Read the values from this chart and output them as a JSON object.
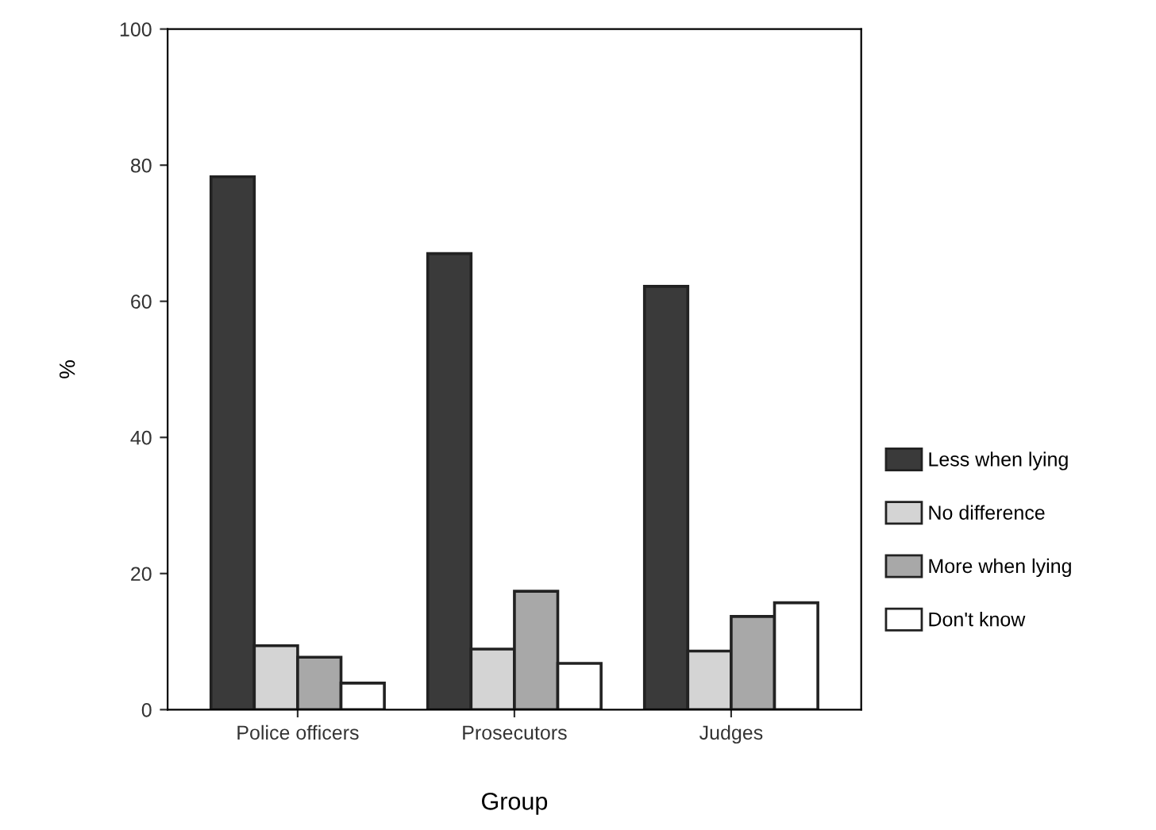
{
  "chart_data": {
    "type": "bar",
    "xlabel": "Group",
    "ylabel": "%",
    "categories": [
      "Police officers",
      "Prosecutors",
      "Judges"
    ],
    "series": [
      {
        "name": "Less when lying",
        "color": "#3a3a3a",
        "values": [
          78.3,
          67.0,
          62.2
        ]
      },
      {
        "name": "No difference",
        "color": "#d4d4d4",
        "values": [
          9.4,
          8.9,
          8.6
        ]
      },
      {
        "name": "More when lying",
        "color": "#a8a8a8",
        "values": [
          7.7,
          17.4,
          13.7
        ]
      },
      {
        "name": "Don't know",
        "color": "#ffffff",
        "values": [
          3.9,
          6.8,
          15.7
        ]
      }
    ],
    "ylim": [
      0,
      100
    ],
    "yticks": [
      0,
      20,
      40,
      60,
      80,
      100
    ],
    "grid": false,
    "legend": "right"
  }
}
